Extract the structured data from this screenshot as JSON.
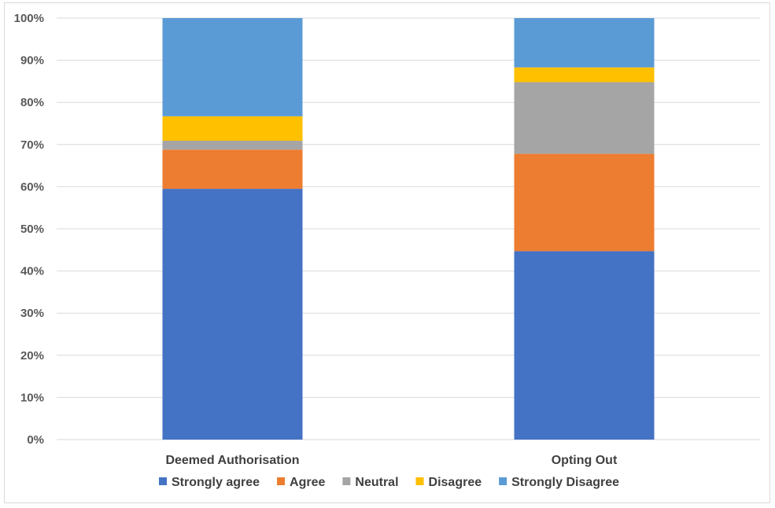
{
  "chart_data": {
    "type": "bar",
    "stacked": true,
    "percent": true,
    "categories": [
      "Deemed Authorisation",
      "Opting Out"
    ],
    "series": [
      {
        "name": "Strongly agree",
        "color": "#4472c4",
        "values": [
          59.5,
          44.7
        ]
      },
      {
        "name": "Agree",
        "color": "#ed7d31",
        "values": [
          9.3,
          23.1
        ]
      },
      {
        "name": "Neutral",
        "color": "#a5a5a5",
        "values": [
          2.1,
          17.0
        ]
      },
      {
        "name": "Disagree",
        "color": "#ffc000",
        "values": [
          5.8,
          3.5
        ]
      },
      {
        "name": "Strongly Disagree",
        "color": "#5b9bd5",
        "values": [
          23.3,
          11.7
        ]
      }
    ],
    "yticks": [
      "0%",
      "10%",
      "20%",
      "30%",
      "40%",
      "50%",
      "60%",
      "70%",
      "80%",
      "90%",
      "100%"
    ],
    "ylim": [
      0,
      100
    ],
    "grid": true,
    "legend_position": "bottom"
  }
}
